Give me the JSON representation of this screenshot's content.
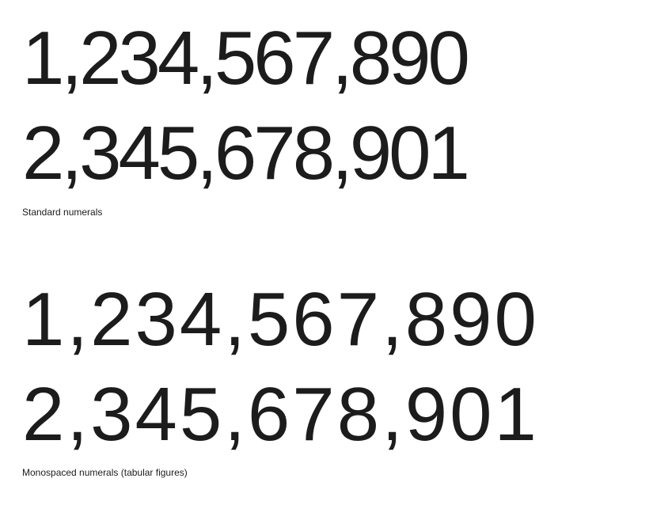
{
  "standard": {
    "lines": [
      "1,234,567,890",
      "2,345,678,901"
    ],
    "caption": "Standard numerals"
  },
  "monospaced": {
    "lines": [
      "1,234,567,890",
      "2,345,678,901"
    ],
    "caption": "Monospaced numerals (tabular figures)"
  }
}
